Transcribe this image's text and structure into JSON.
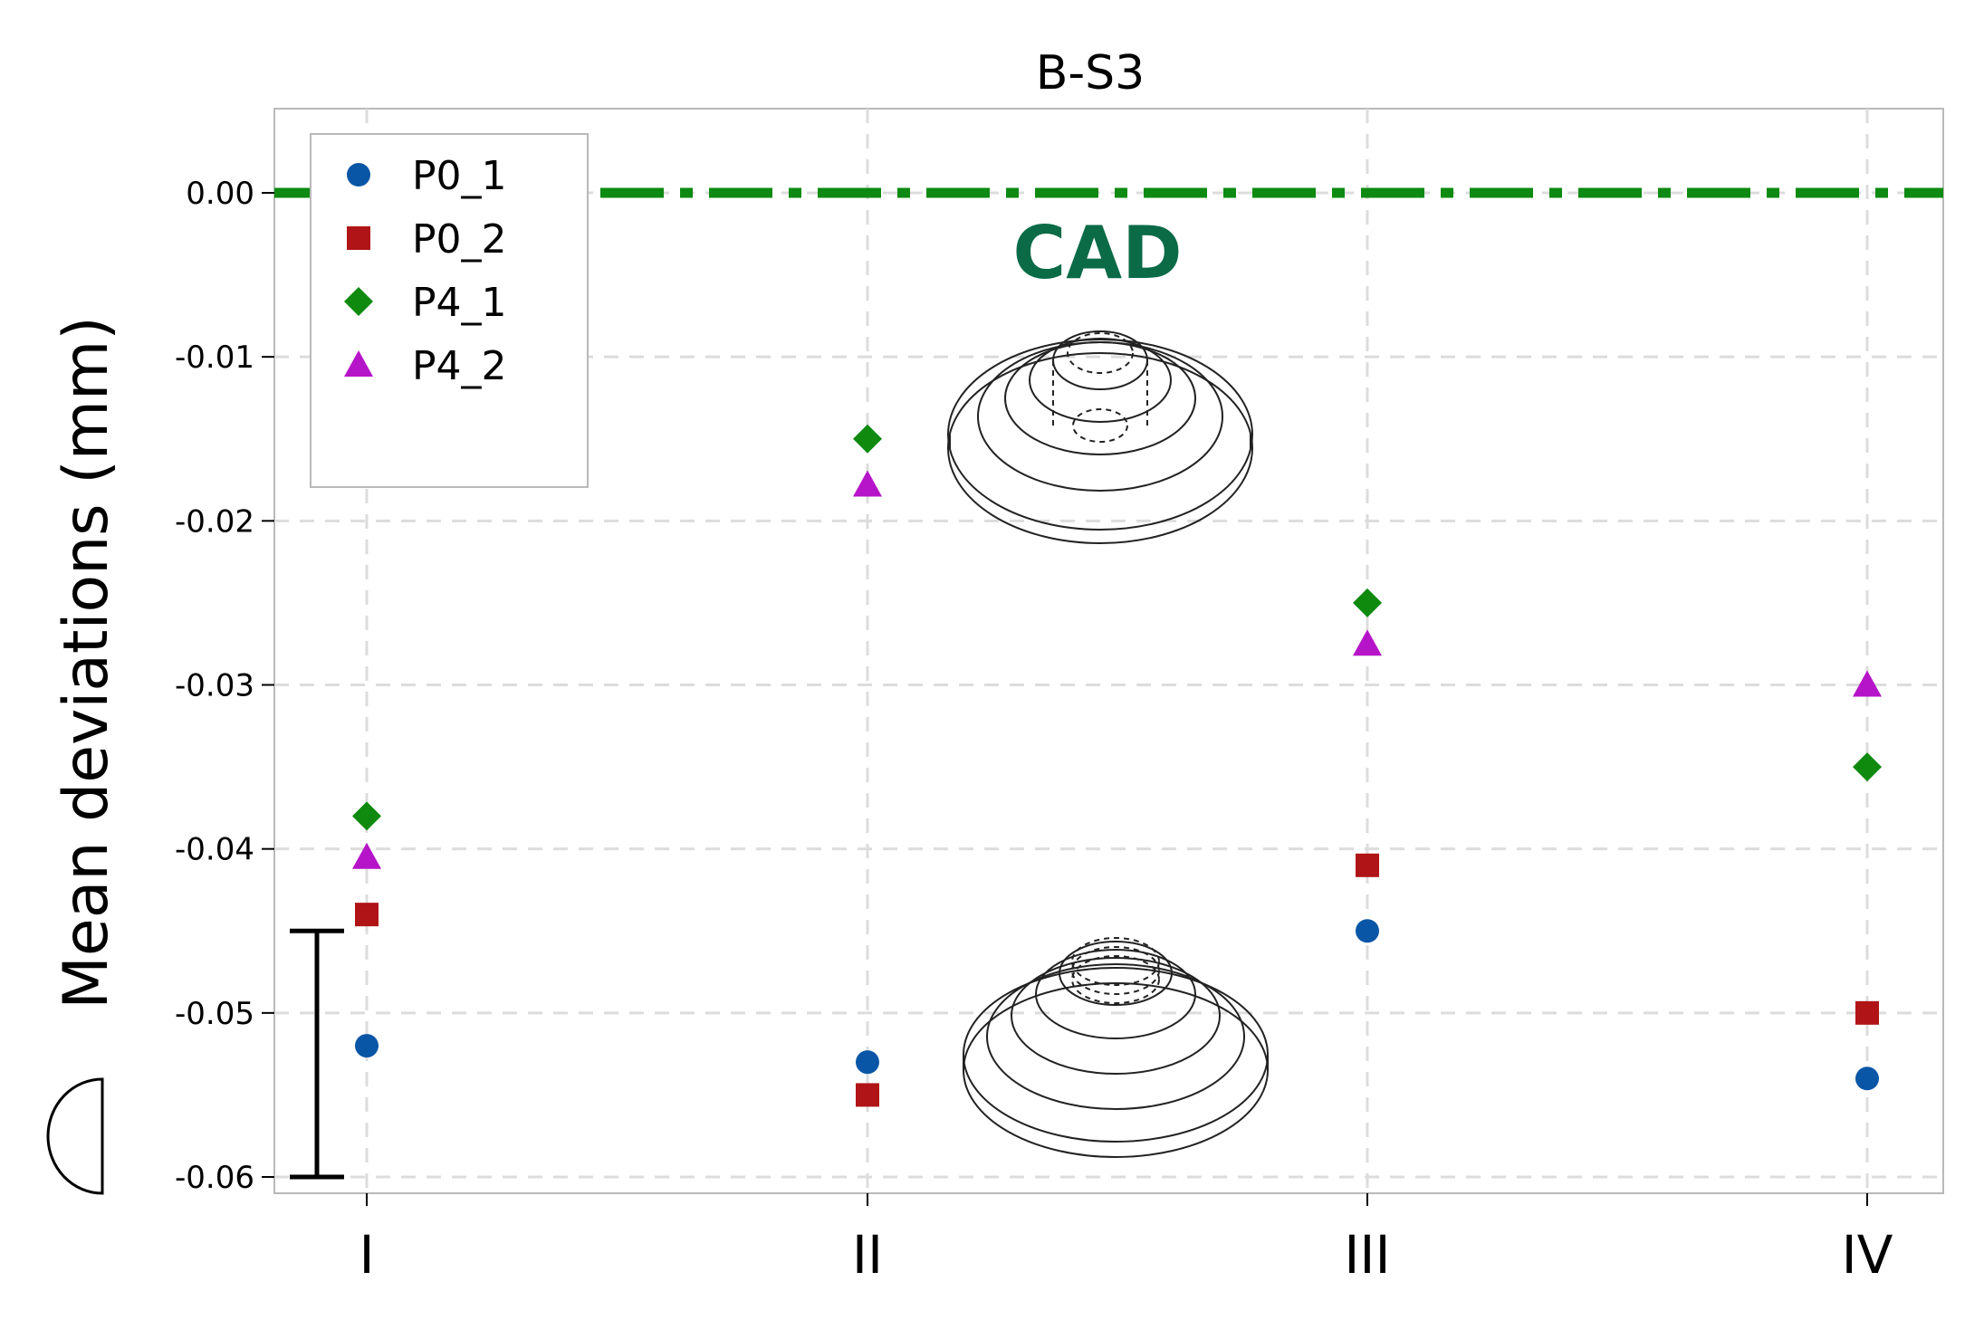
{
  "chart_data": {
    "type": "scatter",
    "title": "B-S3",
    "ylabel": "Mean deviations (mm)",
    "xlabel": "",
    "categories": [
      "I",
      "II",
      "III",
      "IV"
    ],
    "ylim": [
      -0.061,
      0.005
    ],
    "yticks": [
      0.0,
      -0.01,
      -0.02,
      -0.03,
      -0.04,
      -0.05,
      -0.06
    ],
    "ytick_labels": [
      "0.00",
      "-0.01",
      "-0.02",
      "-0.03",
      "-0.04",
      "-0.05",
      "-0.06"
    ],
    "grid": true,
    "legend_position": "top-left",
    "series": [
      {
        "name": "P0_1",
        "marker": "circle",
        "color": "#0a56a6",
        "values": [
          -0.052,
          -0.053,
          -0.045,
          -0.054
        ]
      },
      {
        "name": "P0_2",
        "marker": "square",
        "color": "#b01416",
        "values": [
          -0.044,
          -0.055,
          -0.041,
          -0.05
        ]
      },
      {
        "name": "P4_1",
        "marker": "diamond",
        "color": "#0f8a0f",
        "values": [
          -0.038,
          -0.015,
          -0.025,
          -0.035
        ]
      },
      {
        "name": "P4_2",
        "marker": "triangle",
        "color": "#b614c8",
        "values": [
          -0.0405,
          -0.0178,
          -0.0275,
          -0.03
        ]
      }
    ],
    "reference_line": {
      "label": "CAD",
      "value": 0.0,
      "color": "#0d8a12",
      "label_color": "#0b6b47"
    },
    "tolerance_bar": {
      "lower": -0.06,
      "upper": -0.045
    }
  }
}
